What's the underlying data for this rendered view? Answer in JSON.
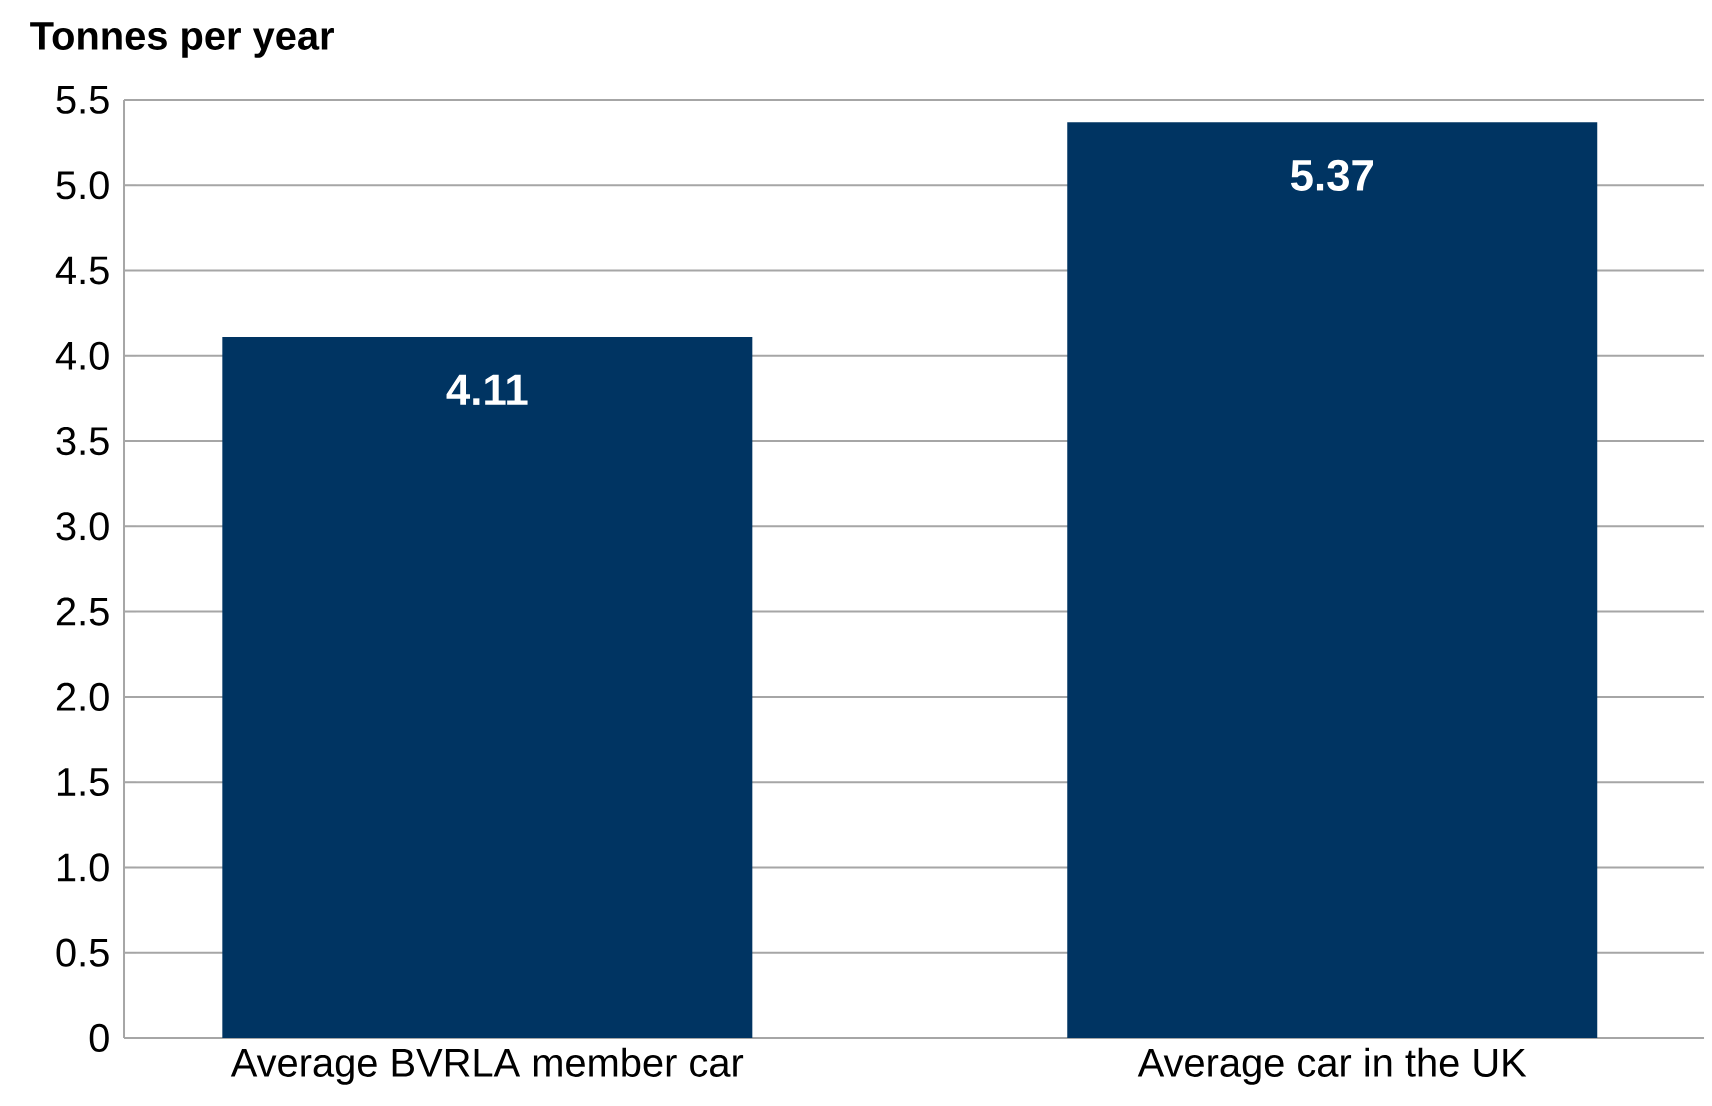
{
  "chart_data": {
    "type": "bar",
    "ylabel": "Tonnes per year",
    "categories": [
      "Average BVRLA member car",
      "Average car in the UK"
    ],
    "values": [
      4.11,
      5.37
    ],
    "color": "#003462",
    "data_labels": true,
    "ylim": [
      0,
      5.5
    ],
    "yticks": [
      0,
      {
        "value": 0.5,
        "label": "0.5"
      },
      {
        "value": 1,
        "label": "1.0"
      },
      {
        "value": 1.5,
        "label": "1.5"
      },
      {
        "value": 2,
        "label": "2.0"
      },
      {
        "value": 2.5,
        "label": "2.5"
      },
      {
        "value": 3,
        "label": "3.0"
      },
      {
        "value": 3.5,
        "label": "3.5"
      },
      {
        "value": 4,
        "label": "4.0"
      },
      {
        "value": 4.5,
        "label": "4.5"
      },
      {
        "value": 5,
        "label": "5.0"
      },
      {
        "value": 5.5,
        "label": "5.5"
      }
    ],
    "grid": "y"
  }
}
